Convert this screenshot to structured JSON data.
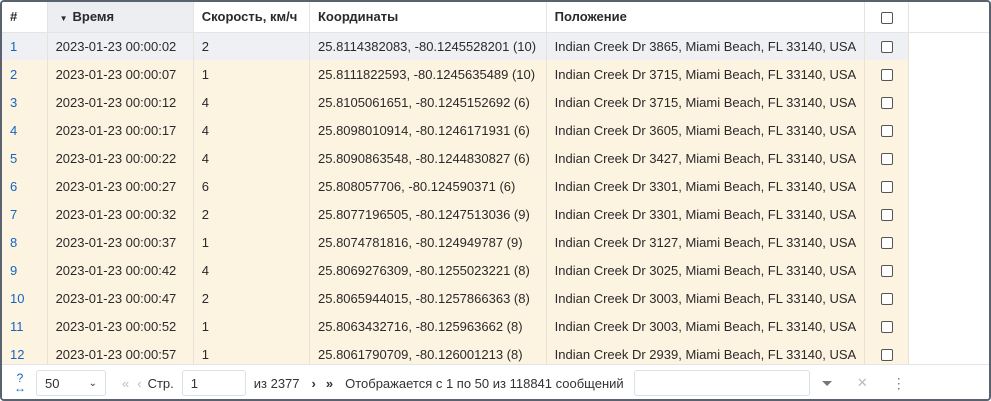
{
  "columns": [
    "#",
    "Время",
    "Скорость, км/ч",
    "Координаты",
    "Положение"
  ],
  "sort": {
    "column": "Время",
    "direction": "desc"
  },
  "rows": [
    [
      "1",
      "2023-01-23 00:00:02",
      "2",
      "25.8114382083, -80.1245528201 (10)",
      "Indian Creek Dr 3865, Miami Beach, FL 33140, USA"
    ],
    [
      "2",
      "2023-01-23 00:00:07",
      "1",
      "25.8111822593, -80.1245635489 (10)",
      "Indian Creek Dr 3715, Miami Beach, FL 33140, USA"
    ],
    [
      "3",
      "2023-01-23 00:00:12",
      "4",
      "25.8105061651, -80.1245152692 (6)",
      "Indian Creek Dr 3715, Miami Beach, FL 33140, USA"
    ],
    [
      "4",
      "2023-01-23 00:00:17",
      "4",
      "25.8098010914, -80.1246171931 (6)",
      "Indian Creek Dr 3605, Miami Beach, FL 33140, USA"
    ],
    [
      "5",
      "2023-01-23 00:00:22",
      "4",
      "25.8090863548, -80.1244830827 (6)",
      "Indian Creek Dr 3427, Miami Beach, FL 33140, USA"
    ],
    [
      "6",
      "2023-01-23 00:00:27",
      "6",
      "25.808057706, -80.124590371 (6)",
      "Indian Creek Dr 3301, Miami Beach, FL 33140, USA"
    ],
    [
      "7",
      "2023-01-23 00:00:32",
      "2",
      "25.8077196505, -80.1247513036 (9)",
      "Indian Creek Dr 3301, Miami Beach, FL 33140, USA"
    ],
    [
      "8",
      "2023-01-23 00:00:37",
      "1",
      "25.8074781816, -80.124949787 (9)",
      "Indian Creek Dr 3127, Miami Beach, FL 33140, USA"
    ],
    [
      "9",
      "2023-01-23 00:00:42",
      "4",
      "25.8069276309, -80.1255023221 (8)",
      "Indian Creek Dr 3025, Miami Beach, FL 33140, USA"
    ],
    [
      "10",
      "2023-01-23 00:00:47",
      "2",
      "25.8065944015, -80.1257866363 (8)",
      "Indian Creek Dr 3003, Miami Beach, FL 33140, USA"
    ],
    [
      "11",
      "2023-01-23 00:00:52",
      "1",
      "25.8063432716, -80.125963662 (8)",
      "Indian Creek Dr 3003, Miami Beach, FL 33140, USA"
    ],
    [
      "12",
      "2023-01-23 00:00:57",
      "1",
      "25.8061790709, -80.126001213 (8)",
      "Indian Creek Dr 2939, Miami Beach, FL 33140, USA"
    ]
  ],
  "footer": {
    "page_size": "50",
    "page_label": "Стр.",
    "page": "1",
    "of_pages": "из 2377",
    "summary": "Отображается с 1 по 50 из 118841 сообщений",
    "search_value": ""
  },
  "colors": {
    "row": "#fdf3e1",
    "selected_row": "#eef0f3",
    "index": "#1565c0"
  }
}
